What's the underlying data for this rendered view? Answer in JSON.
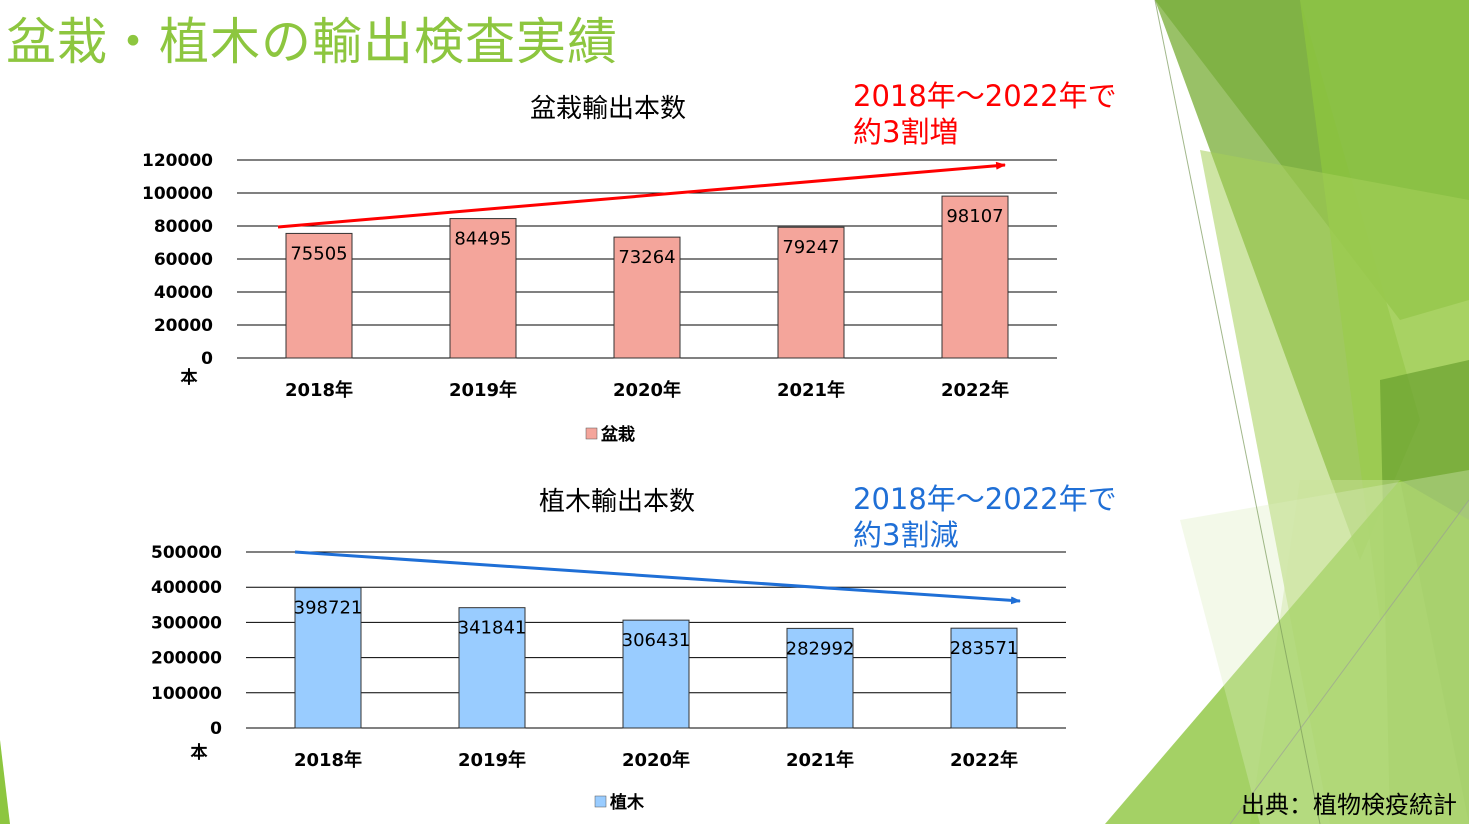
{
  "slide": {
    "title": "盆栽・植木の輸出検査実績",
    "source": "出典：植物検疫統計"
  },
  "notes": {
    "bonsai_trend": [
      "2018年～2022年で",
      "約3割増"
    ],
    "ueki_trend": [
      "2018年～2022年で",
      "約3割減"
    ]
  },
  "colors": {
    "title": "#8dc63f",
    "bonsai_bar": "#f4a59b",
    "ueki_bar": "#99ccff",
    "up_arrow": "#ff0000",
    "down_arrow": "#1f6fd6"
  },
  "chart_data": [
    {
      "type": "bar",
      "title": "盆栽輸出本数",
      "categories": [
        "2018年",
        "2019年",
        "2020年",
        "2021年",
        "2022年"
      ],
      "series": [
        {
          "name": "盆栽",
          "values": [
            75505,
            84495,
            73264,
            79247,
            98107
          ]
        }
      ],
      "ylabel": "本",
      "yticks": [
        0,
        20000,
        40000,
        60000,
        80000,
        100000,
        120000
      ],
      "ylim": [
        0,
        120000
      ],
      "grid": true,
      "legend": "bottom",
      "trend": "up"
    },
    {
      "type": "bar",
      "title": "植木輸出本数",
      "categories": [
        "2018年",
        "2019年",
        "2020年",
        "2021年",
        "2022年"
      ],
      "series": [
        {
          "name": "植木",
          "values": [
            398721,
            341841,
            306431,
            282992,
            283571
          ]
        }
      ],
      "ylabel": "本",
      "yticks": [
        0,
        100000,
        200000,
        300000,
        400000,
        500000
      ],
      "ylim": [
        0,
        500000
      ],
      "grid": true,
      "legend": "bottom",
      "trend": "down"
    }
  ]
}
